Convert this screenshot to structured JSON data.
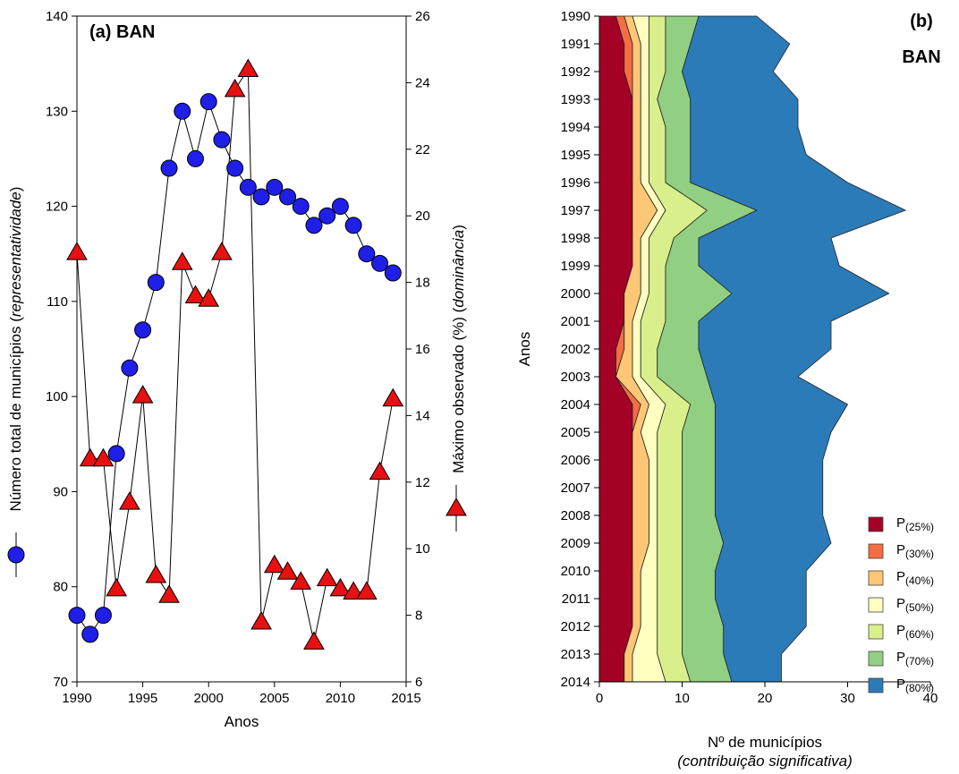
{
  "chart_data": [
    {
      "type": "line",
      "title": "(a) BAN",
      "xlabel": "Anos",
      "ylabel_left": [
        "Número total de municípios (",
        "representatividade",
        ")"
      ],
      "ylabel_right": [
        "Máximo observado (%) (",
        "dominância",
        ")"
      ],
      "xlim": [
        1990,
        2015
      ],
      "ylim_left": [
        70,
        140
      ],
      "ylim_right": [
        6,
        26
      ],
      "x_ticks": [
        1990,
        1995,
        2000,
        2005,
        2010,
        2015
      ],
      "y_left_ticks": [
        70,
        80,
        90,
        100,
        110,
        120,
        130,
        140
      ],
      "y_right_ticks": [
        6,
        8,
        10,
        12,
        14,
        16,
        18,
        20,
        22,
        24,
        26
      ],
      "legend_left_marker": "blue-circle",
      "legend_right_marker": "red-triangle",
      "series": [
        {
          "axis": "left",
          "marker": "circle",
          "color": "#1f1fe8",
          "x": [
            1990,
            1991,
            1992,
            1993,
            1994,
            1995,
            1996,
            1997,
            1998,
            1999,
            2000,
            2001,
            2002,
            2003,
            2004,
            2005,
            2006,
            2007,
            2008,
            2009,
            2010,
            2011,
            2012,
            2013,
            2014
          ],
          "values": [
            77,
            75,
            77,
            94,
            103,
            107,
            112,
            124,
            130,
            125,
            131,
            127,
            124,
            122,
            121,
            122,
            121,
            120,
            118,
            119,
            120,
            118,
            115,
            114,
            113
          ]
        },
        {
          "axis": "right",
          "marker": "triangle",
          "color": "#e81010",
          "x": [
            1990,
            1991,
            1992,
            1993,
            1994,
            1995,
            1996,
            1997,
            1998,
            1999,
            2000,
            2001,
            2002,
            2003,
            2004,
            2005,
            2006,
            2007,
            2008,
            2009,
            2010,
            2011,
            2012,
            2013,
            2014
          ],
          "values": [
            18.9,
            12.7,
            12.7,
            8.8,
            11.4,
            14.6,
            9.2,
            8.6,
            18.6,
            17.6,
            17.5,
            18.9,
            23.8,
            24.4,
            7.8,
            9.5,
            9.3,
            9.0,
            7.2,
            9.1,
            8.8,
            8.7,
            8.7,
            12.3,
            14.5
          ]
        }
      ]
    },
    {
      "type": "area",
      "orientation": "horizontal",
      "stacked": true,
      "title": "(b)",
      "subtitle": "BAN",
      "xlabel": "Nº de municípios",
      "xlabel_note": "(contribuição significativa)",
      "ylabel": "Anos",
      "xlim": [
        0,
        40
      ],
      "x_ticks": [
        0,
        10,
        20,
        30,
        40
      ],
      "categories": [
        "1990",
        "1991",
        "1992",
        "1993",
        "1994",
        "1995",
        "1996",
        "1997",
        "1998",
        "1999",
        "2000",
        "2001",
        "2002",
        "2003",
        "2004",
        "2005",
        "2006",
        "2007",
        "2008",
        "2009",
        "2010",
        "2011",
        "2012",
        "2013",
        "2014"
      ],
      "legend_position": "bottom-right",
      "series": [
        {
          "name": "P",
          "sub": "(25%)",
          "color": "#a50026",
          "values": [
            2,
            3,
            3,
            4,
            4,
            4,
            4,
            4,
            4,
            4,
            3,
            3,
            2,
            2,
            4,
            4,
            4,
            4,
            4,
            4,
            4,
            4,
            4,
            3,
            3
          ]
        },
        {
          "name": "P",
          "sub": "(30%)",
          "color": "#f46d43",
          "values": [
            3,
            4,
            4,
            4,
            4,
            4,
            4,
            4,
            4,
            4,
            3,
            3,
            3,
            2,
            5,
            4,
            4,
            4,
            4,
            4,
            4,
            4,
            4,
            3,
            3
          ]
        },
        {
          "name": "P",
          "sub": "(40%)",
          "color": "#fdc776",
          "values": [
            4,
            5,
            5,
            5,
            5,
            5,
            5,
            7,
            5,
            5,
            5,
            4,
            4,
            4,
            6,
            5,
            6,
            6,
            6,
            6,
            5,
            5,
            5,
            4,
            4
          ]
        },
        {
          "name": "P",
          "sub": "(50%)",
          "color": "#ffffbf",
          "values": [
            6,
            6,
            6,
            6,
            6,
            6,
            6,
            8,
            6,
            6,
            6,
            5,
            5,
            5,
            8,
            7,
            7,
            7,
            7,
            7,
            7,
            7,
            7,
            7,
            8
          ]
        },
        {
          "name": "P",
          "sub": "(60%)",
          "color": "#d9ef8b",
          "values": [
            8,
            8,
            8,
            7,
            8,
            8,
            8,
            13,
            9,
            8,
            8,
            8,
            7,
            7,
            11,
            10,
            10,
            10,
            10,
            10,
            10,
            10,
            10,
            10,
            11
          ]
        },
        {
          "name": "P",
          "sub": "(70%)",
          "color": "#91cf82",
          "values": [
            12,
            11,
            10,
            11,
            11,
            11,
            11,
            19,
            12,
            12,
            16,
            12,
            12,
            13,
            14,
            14,
            14,
            14,
            14,
            15,
            14,
            14,
            15,
            15,
            16
          ]
        },
        {
          "name": "P",
          "sub": "(80%)",
          "color": "#2b7bb9",
          "values": [
            19,
            23,
            21,
            24,
            24,
            25,
            30,
            37,
            28,
            29,
            35,
            28,
            28,
            24,
            30,
            28,
            27,
            27,
            27,
            28,
            25,
            25,
            25,
            22,
            22
          ]
        }
      ],
      "values_are_cumulative": true
    }
  ]
}
